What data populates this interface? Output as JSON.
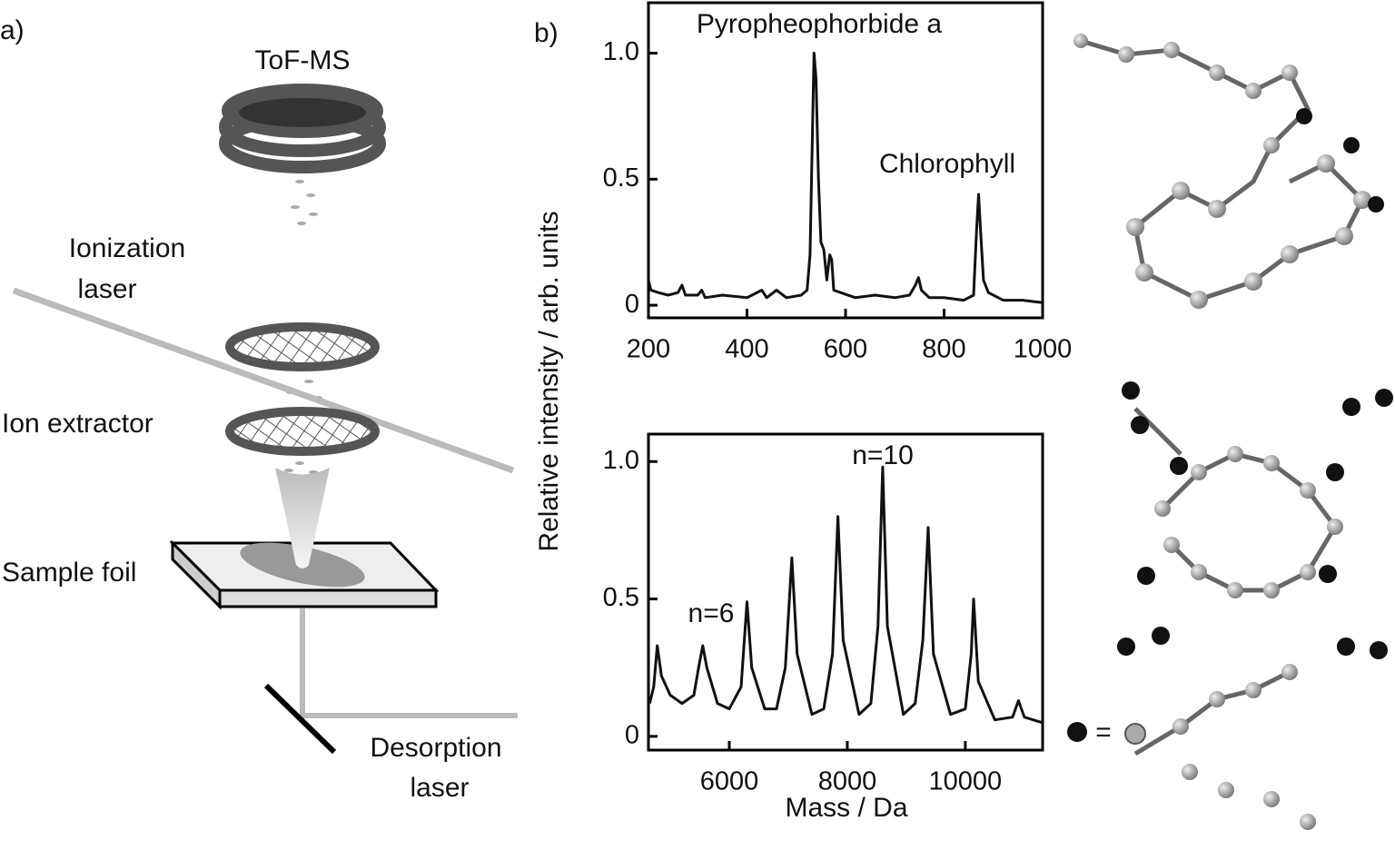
{
  "labels": {
    "panel_a": "a)",
    "panel_b": "b)",
    "tof": "ToF-MS",
    "ionization": [
      "Ionization",
      "laser"
    ],
    "extractor": "Ion extractor",
    "foil": "Sample foil",
    "desorption": [
      "Desorption",
      "laser"
    ],
    "equals": "="
  },
  "y_axis_label": "Relative intensity / arb. units",
  "chart_data": [
    {
      "type": "line",
      "color": "#111111",
      "annotations": [
        "Pyropheophorbide a",
        "Chlorophyll"
      ],
      "x": [
        200,
        205,
        220,
        240,
        260,
        268,
        275,
        300,
        308,
        315,
        350,
        400,
        430,
        440,
        460,
        480,
        510,
        522,
        528,
        532,
        536,
        540,
        545,
        550,
        556,
        562,
        568,
        572,
        576,
        590,
        620,
        660,
        700,
        730,
        742,
        748,
        754,
        770,
        800,
        840,
        860,
        866,
        870,
        874,
        880,
        890,
        920,
        960,
        1000
      ],
      "values": [
        0.1,
        0.06,
        0.05,
        0.04,
        0.05,
        0.08,
        0.04,
        0.04,
        0.06,
        0.03,
        0.04,
        0.03,
        0.06,
        0.03,
        0.06,
        0.03,
        0.04,
        0.06,
        0.2,
        0.6,
        1.0,
        0.9,
        0.5,
        0.25,
        0.22,
        0.1,
        0.2,
        0.18,
        0.06,
        0.05,
        0.03,
        0.04,
        0.03,
        0.04,
        0.08,
        0.11,
        0.06,
        0.03,
        0.03,
        0.02,
        0.04,
        0.3,
        0.44,
        0.3,
        0.1,
        0.05,
        0.02,
        0.02,
        0.01
      ],
      "xlim": [
        200,
        1000
      ],
      "xticks": [
        200,
        400,
        600,
        800,
        1000
      ],
      "ylim": [
        -0.05,
        1.2
      ],
      "yticks": [
        0,
        0.5,
        {
          "value": 1,
          "label": "1.0"
        }
      ]
    },
    {
      "type": "line",
      "color": "#111111",
      "x_label": "Mass / Da",
      "annotations": [
        "n=10",
        "n=6"
      ],
      "x": [
        4650,
        4720,
        4780,
        4850,
        5000,
        5200,
        5400,
        5480,
        5550,
        5620,
        5800,
        6000,
        6200,
        6300,
        6380,
        6600,
        6800,
        6950,
        7060,
        7150,
        7400,
        7600,
        7750,
        7840,
        7930,
        8200,
        8400,
        8520,
        8600,
        8680,
        8950,
        9150,
        9280,
        9370,
        9460,
        9750,
        10000,
        10100,
        10140,
        10220,
        10500,
        10800,
        10900,
        11000,
        11300
      ],
      "values": [
        0.12,
        0.18,
        0.33,
        0.22,
        0.15,
        0.12,
        0.15,
        0.25,
        0.33,
        0.25,
        0.12,
        0.1,
        0.18,
        0.49,
        0.25,
        0.1,
        0.1,
        0.25,
        0.65,
        0.3,
        0.08,
        0.1,
        0.3,
        0.8,
        0.35,
        0.08,
        0.12,
        0.4,
        0.98,
        0.4,
        0.08,
        0.12,
        0.35,
        0.76,
        0.3,
        0.08,
        0.1,
        0.3,
        0.5,
        0.2,
        0.06,
        0.07,
        0.13,
        0.07,
        0.05
      ],
      "xlim": [
        4630,
        11310
      ],
      "xticks": [
        6000,
        8000,
        10000
      ],
      "ylim": [
        -0.05,
        1.1
      ],
      "yticks": [
        0,
        0.5,
        {
          "value": 1,
          "label": "1.0"
        }
      ]
    }
  ]
}
